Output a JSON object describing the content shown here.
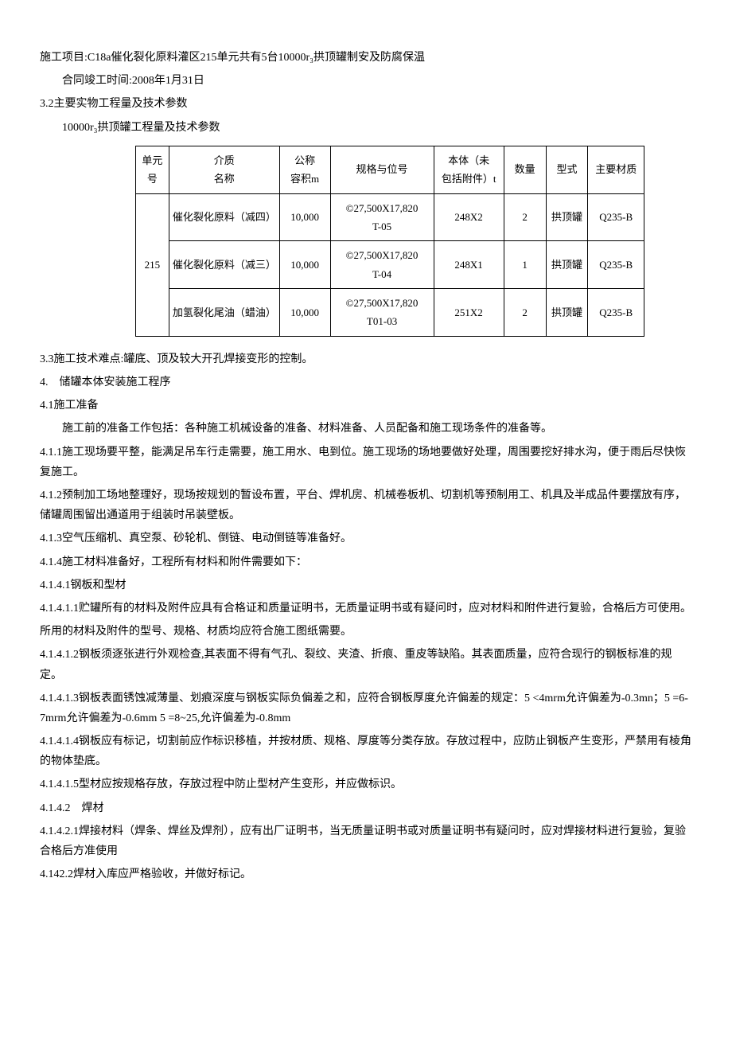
{
  "p1": "施工项目:C18a催化裂化原料灌区215单元共有5台10000r₃拱顶罐制安及防腐保温",
  "p2": "合同竣工时间:2008年1月31日",
  "p3": "3.2主要实物工程量及技术参数",
  "p4": "10000r₃拱顶罐工程量及技术参数",
  "table": {
    "headers": {
      "unit": "单元号",
      "medium": "介质\n名称",
      "capacity": "公称\n容积m",
      "spec": "规格与位号",
      "weight": "本体（未\n包括附件）t",
      "qty": "数量",
      "type": "型式",
      "material": "主要材质"
    },
    "unitCell": "215",
    "rows": [
      {
        "medium": "催化裂化原料（减四）",
        "capacity": "10,000",
        "spec": "©27,500X17,820\nT-05",
        "weight": "248X2",
        "qty": "2",
        "type": "拱顶罐",
        "material": "Q235-B"
      },
      {
        "medium": "催化裂化原料（减三）",
        "capacity": "10,000",
        "spec": "©27,500X17,820\nT-04",
        "weight": "248X1",
        "qty": "1",
        "type": "拱顶罐",
        "material": "Q235-B"
      },
      {
        "medium": "加氢裂化尾油（蜡油）",
        "capacity": "10,000",
        "spec": "©27,500X17,820\nT01-03",
        "weight": "251X2",
        "qty": "2",
        "type": "拱顶罐",
        "material": "Q235-B"
      }
    ]
  },
  "p5": "3.3施工技术难点:罐底、顶及较大开孔焊接变形的控制。",
  "p6": "4. 储罐本体安装施工程序",
  "p7": "4.1施工准备",
  "p8": "施工前的准备工作包括：各种施工机械设备的准备、材料准备、人员配备和施工现场条件的准备等。",
  "p9": "4.1.1施工现场要平整，能满足吊车行走需要，施工用水、电到位。施工现场的场地要做好处理，周围要挖好排水沟，便于雨后尽快恢复施工。",
  "p10": "4.1.2预制加工场地整理好，现场按规划的暂设布置，平台、焊机房、机械卷板机、切割机等预制用工、机具及半成品件要摆放有序，储罐周围留出通道用于组装时吊装壁板。",
  "p11": "4.1.3空气压缩机、真空泵、砂轮机、倒链、电动倒链等准备好。",
  "p12": "4.1.4施工材料准备好，工程所有材料和附件需要如下：",
  "p13": "4.1.4.1钢板和型材",
  "p14": "4.1.4.1.1贮罐所有的材料及附件应具有合格证和质量证明书，无质量证明书或有疑问时，应对材料和附件进行复验，合格后方可使用。",
  "p15": "所用的材料及附件的型号、规格、材质均应符合施工图纸需要。",
  "p16": "4.1.4.1.2钢板须逐张进行外观检查,其表面不得有气孔、裂纹、夹渣、折痕、重皮等缺陷。其表面质量，应符合现行的钢板标准的规定。",
  "p17": "4.1.4.1.3钢板表面锈蚀减薄量、划痕深度与钢板实际负偏差之和，应符合钢板厚度允许偏差的规定：5 <4mrm允许偏差为-0.3mn；5 =6-7mrm允许偏差为-0.6mm 5 =8~25,允许偏差为-0.8mm",
  "p18": "4.1.4.1.4钢板应有标记，切割前应作标识移植，并按材质、规格、厚度等分类存放。存放过程中，应防止钢板产生变形，严禁用有棱角的物体垫底。",
  "p19": "4.1.4.1.5型材应按规格存放，存放过程中防止型材产生变形，并应做标识。",
  "p20": "4.1.4.2 焊材",
  "p21": "4.1.4.2.1焊接材料（焊条、焊丝及焊剂），应有出厂证明书，当无质量证明书或对质量证明书有疑问时，应对焊接材料进行复验，复验合格后方准使用",
  "p22": "4.142.2焊材入库应严格验收，并做好标记。"
}
